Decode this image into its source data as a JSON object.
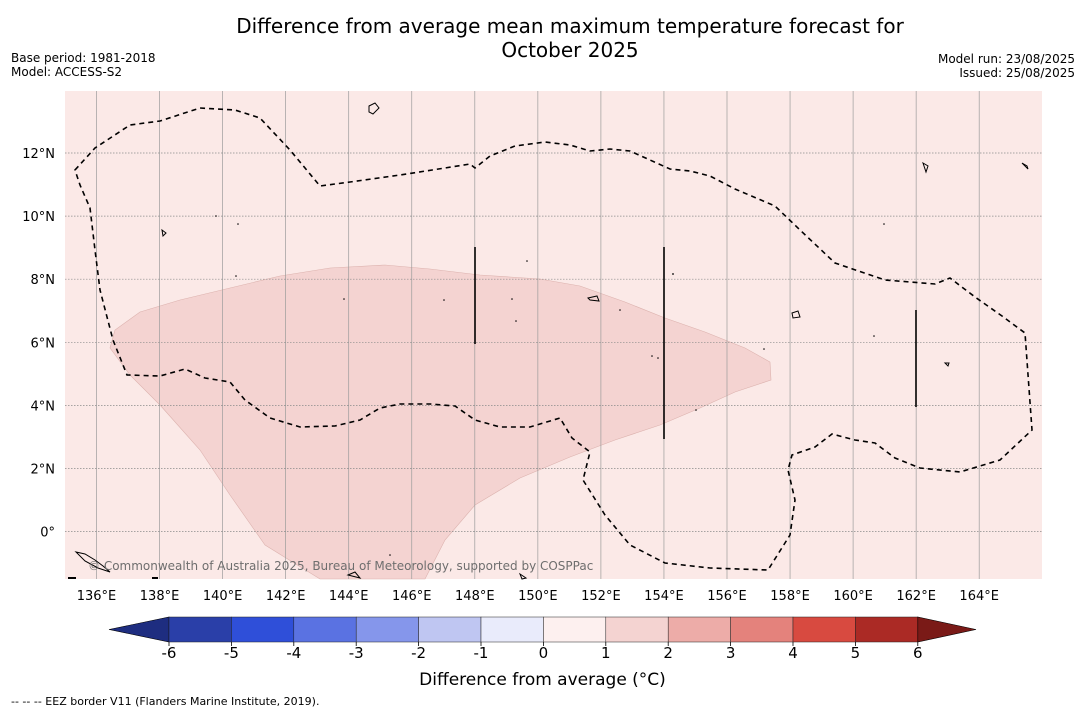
{
  "header": {
    "title_line1": "Difference from average mean maximum temperature forecast for",
    "title_line2": "October 2025",
    "base_period": "Base period: 1981-2018",
    "model": "Model: ACCESS-S2",
    "model_run": "Model run: 23/08/2025",
    "issued": "Issued: 25/08/2025"
  },
  "map": {
    "lon_ticks": [
      "136°E",
      "138°E",
      "140°E",
      "142°E",
      "144°E",
      "146°E",
      "148°E",
      "150°E",
      "152°E",
      "154°E",
      "156°E",
      "158°E",
      "160°E",
      "162°E",
      "164°E"
    ],
    "lat_ticks": [
      "12°N",
      "10°N",
      "8°N",
      "6°N",
      "4°N",
      "2°N",
      "0°"
    ],
    "copyright": "© Commonwealth of Australia 2025, Bureau of Meteorology, supported by COSPPac",
    "background_category": "0 to 1",
    "anomaly_region_category": "1 to 2"
  },
  "colorbar": {
    "ticks": [
      "-6",
      "-5",
      "-4",
      "-3",
      "-2",
      "-1",
      "0",
      "1",
      "2",
      "3",
      "4",
      "5",
      "6"
    ],
    "colors": [
      "#2a3fa8",
      "#2f4fd9",
      "#5a72e2",
      "#8596eb",
      "#bfc6f2",
      "#e9ebfb",
      "#fdf0ef",
      "#f4d3d1",
      "#edaca8",
      "#e4827c",
      "#d84a40",
      "#ab2a25"
    ],
    "min_extend_color": "#1e2d80",
    "max_extend_color": "#7a1a17",
    "label": "Difference from average (°C)"
  },
  "footnote": "-- -- -- EEZ border V11 (Flanders Marine Institute, 2019)."
}
